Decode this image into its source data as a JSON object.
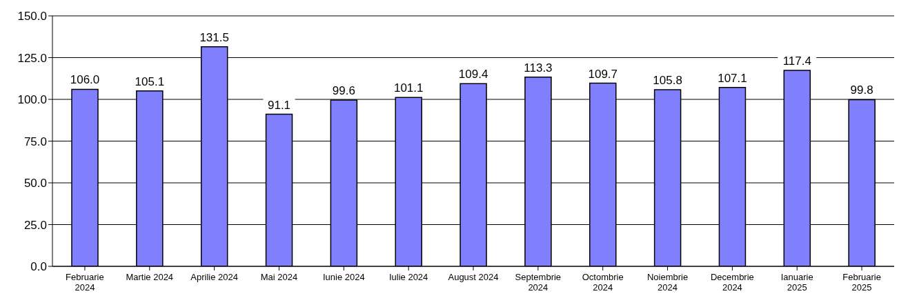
{
  "chart_data": {
    "type": "bar",
    "categories": [
      "Februarie 2024",
      "Martie 2024",
      "Aprilie 2024",
      "Mai 2024",
      "Iunie 2024",
      "Iulie 2024",
      "August 2024",
      "Septembrie 2024",
      "Octombrie 2024",
      "Noiembrie 2024",
      "Decembrie 2024",
      "Ianuarie 2025",
      "Februarie 2025"
    ],
    "values": [
      106.0,
      105.1,
      131.5,
      91.1,
      99.6,
      101.1,
      109.4,
      113.3,
      109.7,
      105.8,
      107.1,
      117.4,
      99.8
    ],
    "value_labels": [
      "106.0",
      "105.1",
      "131.5",
      "91.1",
      "99.6",
      "101.1",
      "109.4",
      "113.3",
      "109.7",
      "105.8",
      "107.1",
      "117.4",
      "99.8"
    ],
    "color": "#8080ff",
    "ylim": [
      0,
      150
    ],
    "yticks": [
      {
        "value": 0,
        "label": "0.0"
      },
      {
        "value": 25,
        "label": "25.0"
      },
      {
        "value": 50,
        "label": "50.0"
      },
      {
        "value": 75,
        "label": "75.0"
      },
      {
        "value": 100,
        "label": "100.0"
      },
      {
        "value": 125,
        "label": "125.0"
      },
      {
        "value": 150,
        "label": "150.0"
      }
    ],
    "grid": "y"
  }
}
